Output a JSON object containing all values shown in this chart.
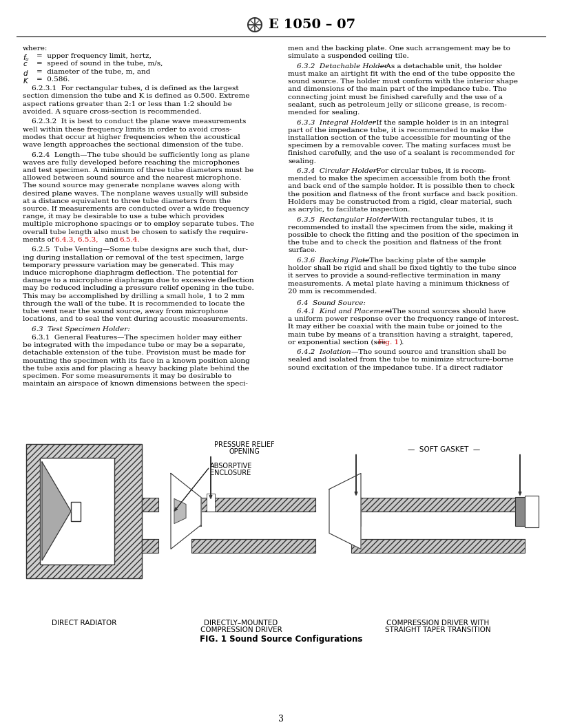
{
  "title": "E 1050 – 07",
  "page_number": "3",
  "background_color": "#ffffff",
  "text_color": "#000000",
  "red_color": "#cc0000",
  "fig_caption": "FIG. 1 Sound Source Configurations",
  "label_direct_radiator": "DIRECT RADIATOR",
  "label_directly_mounted": "DIRECTLY–MOUNTED\nCOMPRESSION DRIVER",
  "label_compression_driver": "COMPRESSION DRIVER WITH\nSTRAIGHT TAPER TRANSITION",
  "label_absorptive": "ABSORPTIVE\nENCLOSURE",
  "label_pressure_relief": "PRESSURE RELIEF\nOPENING",
  "label_soft_gasket": "SOFT GASKET"
}
